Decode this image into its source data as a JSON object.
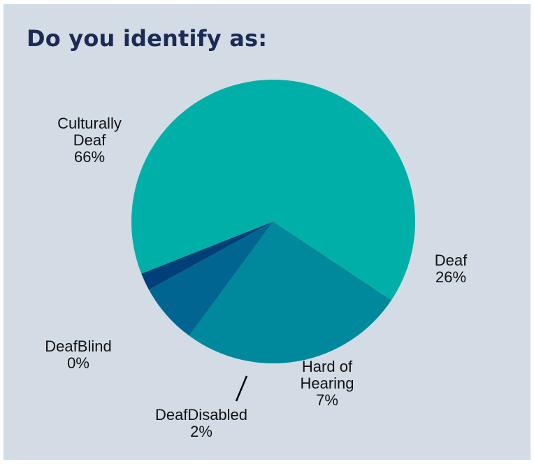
{
  "chart_data": {
    "type": "pie",
    "title": "Do you identify as:",
    "slices": [
      {
        "label": "Culturally Deaf",
        "label_lines": [
          "Culturally",
          "Deaf"
        ],
        "percent_label": "66%",
        "value": 66,
        "color": "#00b0a8"
      },
      {
        "label": "Deaf",
        "label_lines": [
          "Deaf"
        ],
        "percent_label": "26%",
        "value": 26,
        "color": "#00899d"
      },
      {
        "label": "Hard of Hearing",
        "label_lines": [
          "Hard of",
          "Hearing"
        ],
        "percent_label": "7%",
        "value": 7,
        "color": "#006691"
      },
      {
        "label": "DeafBlind",
        "label_lines": [
          "DeafBlind"
        ],
        "percent_label": "0%",
        "value": 0,
        "color": "#1d2f62"
      },
      {
        "label": "DeafDisabled",
        "label_lines": [
          "DeafDisabled"
        ],
        "percent_label": "2%",
        "value": 2,
        "color": "#003f78"
      }
    ]
  },
  "colors": {
    "background": "#d3dce5",
    "title": "#1c2a55",
    "label_text": "#111111",
    "leader_line": "#000000"
  }
}
